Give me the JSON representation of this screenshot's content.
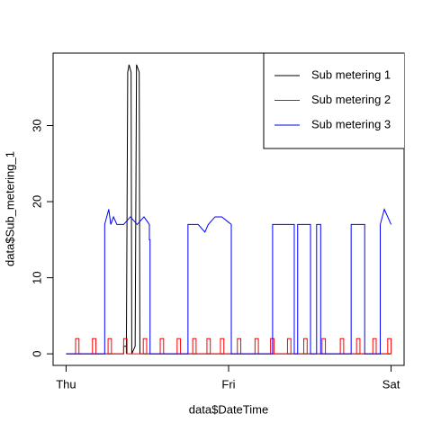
{
  "chart_data": {
    "type": "line",
    "xlabel": "data$DateTime",
    "ylabel": "data$Sub_metering_1",
    "xlim": [
      -1.92,
      49.92
    ],
    "xticks": [
      {
        "value": 0,
        "label": "Thu"
      },
      {
        "value": 24,
        "label": "Fri"
      },
      {
        "value": 48,
        "label": "Sat"
      }
    ],
    "ylim": [
      -1.52,
      39.52
    ],
    "yticks": [
      0,
      10,
      20,
      30
    ],
    "legend": "topright",
    "series": [
      {
        "name": "Sub metering 1",
        "color": "#000000",
        "x": [
          0,
          8.5,
          8.5,
          8.9,
          8.9,
          9.1,
          9.3,
          9.6,
          9.7,
          10.2,
          10.2,
          10.4,
          10.8,
          10.9,
          11.3,
          48
        ],
        "values": [
          0,
          0,
          1,
          1,
          0,
          37,
          38,
          37,
          0,
          1,
          1,
          38,
          37,
          0,
          0,
          0
        ]
      },
      {
        "name": "Sub metering 2",
        "color": "#ff0000",
        "x": [
          0,
          1.4,
          1.4,
          1.9,
          1.9,
          3.9,
          3.9,
          4.4,
          4.4,
          6.2,
          6.2,
          6.7,
          6.7,
          8.5,
          8.5,
          9,
          9,
          11.4,
          11.4,
          11.9,
          11.9,
          13.9,
          13.9,
          14.4,
          14.4,
          16.4,
          16.4,
          16.9,
          16.9,
          18.7,
          18.7,
          19.2,
          19.2,
          20.8,
          20.8,
          21.3,
          21.3,
          22.8,
          22.8,
          23.3,
          23.3,
          25.3,
          25.3,
          25.8,
          25.8,
          27.9,
          27.9,
          28.4,
          28.4,
          30.2,
          30.2,
          30.7,
          30.7,
          32.7,
          32.7,
          33.2,
          33.2,
          35.1,
          35.1,
          35.6,
          35.6,
          37.8,
          37.8,
          38.3,
          38.3,
          40.5,
          40.5,
          41,
          41,
          42.9,
          42.9,
          43.4,
          43.4,
          45.3,
          45.3,
          45.8,
          45.8,
          47.5,
          47.5,
          48,
          48
        ],
        "values": [
          0,
          0,
          2,
          2,
          0,
          0,
          2,
          2,
          0,
          0,
          2,
          2,
          0,
          0,
          2,
          2,
          0,
          0,
          2,
          2,
          0,
          0,
          2,
          2,
          0,
          0,
          2,
          2,
          0,
          0,
          2,
          2,
          0,
          0,
          2,
          2,
          0,
          0,
          2,
          2,
          0,
          0,
          2,
          2,
          0,
          0,
          2,
          2,
          0,
          0,
          2,
          2,
          0,
          0,
          2,
          2,
          0,
          0,
          2,
          2,
          0,
          0,
          2,
          2,
          0,
          0,
          2,
          2,
          0,
          0,
          2,
          2,
          0,
          0,
          2,
          2,
          0,
          0,
          2,
          2,
          0
        ]
      },
      {
        "name": "Sub metering 3",
        "color": "#0000ff",
        "x": [
          0,
          5.7,
          5.7,
          6.3,
          6.6,
          7,
          7.5,
          8.5,
          9.5,
          10.5,
          11.5,
          12.3,
          12.3,
          12.4,
          12.4,
          18,
          18,
          19.5,
          20.5,
          21,
          22,
          23,
          24.4,
          24.4,
          30.5,
          30.5,
          32,
          33.7,
          33.7,
          34.2,
          34.2,
          36.1,
          36.1,
          37,
          37,
          37.6,
          37.6,
          42.1,
          42.1,
          44.1,
          44.1,
          46.4,
          46.4,
          47,
          48
        ],
        "values": [
          0,
          0,
          17,
          19,
          17,
          18,
          17,
          17,
          18,
          17,
          18,
          17,
          15,
          15,
          0,
          0,
          17,
          17,
          16,
          17,
          18,
          18,
          17,
          0,
          0,
          17,
          17,
          17,
          0,
          0,
          17,
          17,
          0,
          0,
          17,
          17,
          0,
          0,
          17,
          17,
          0,
          0,
          17,
          19,
          17
        ]
      }
    ]
  }
}
